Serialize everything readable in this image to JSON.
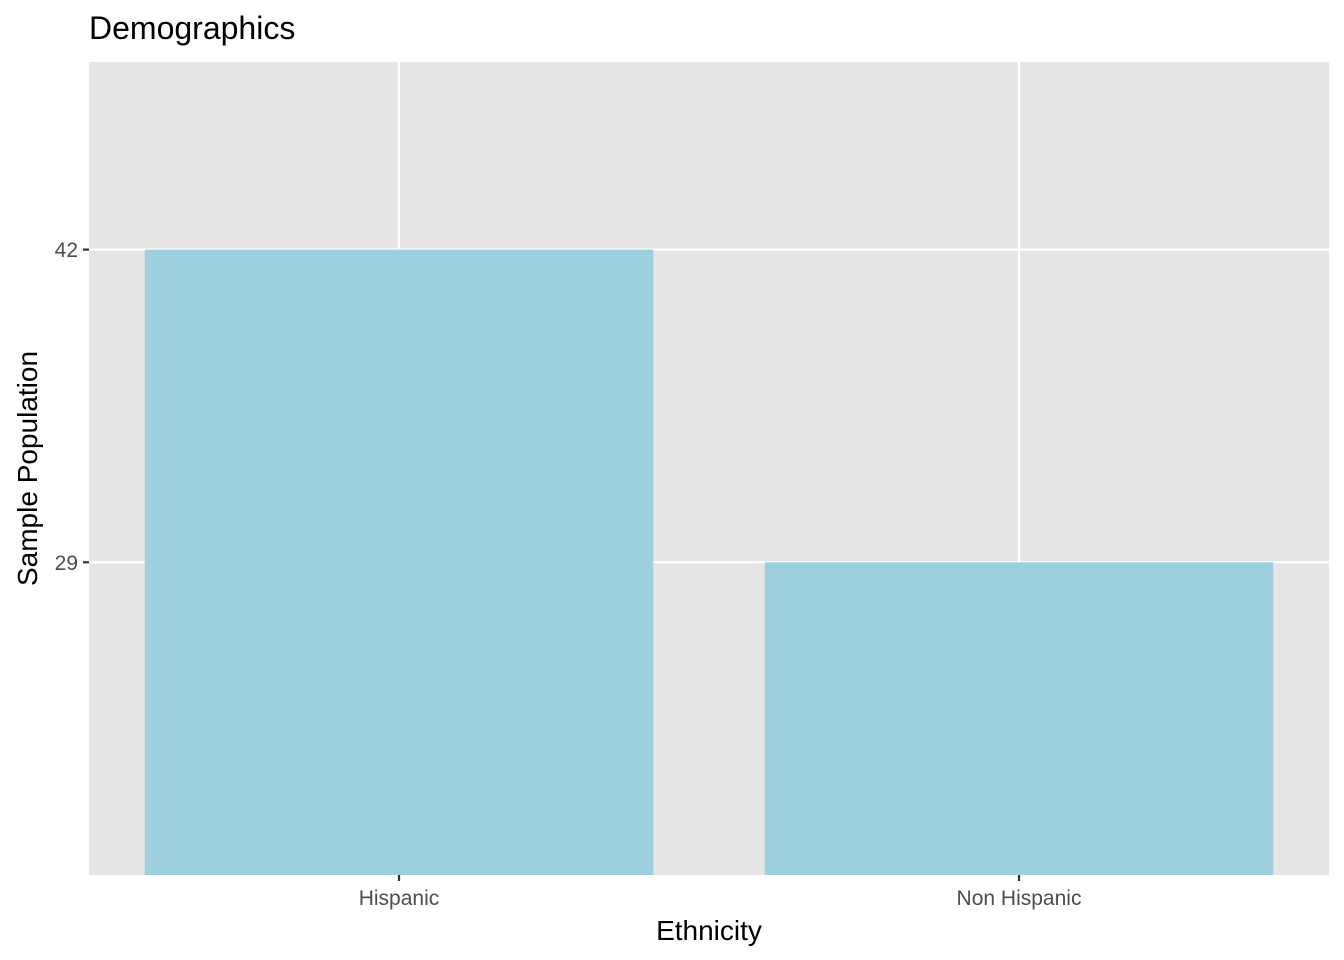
{
  "chart_data": {
    "type": "bar",
    "title": "Demographics",
    "xlabel": "Ethnicity",
    "ylabel": "Sample Population",
    "categories": [
      "Hispanic",
      "Non Hispanic"
    ],
    "values": [
      42,
      29
    ],
    "yticks": [
      29,
      42
    ],
    "ylim": [
      16,
      49.8
    ],
    "grid": true,
    "legend": "none",
    "colors": {
      "bar": "#9ECFDF",
      "panel": "#E5E5E5",
      "grid": "#FFFFFF",
      "text": "#000000",
      "tick_text": "#4D4D4D",
      "tick_mark": "#333333"
    }
  }
}
